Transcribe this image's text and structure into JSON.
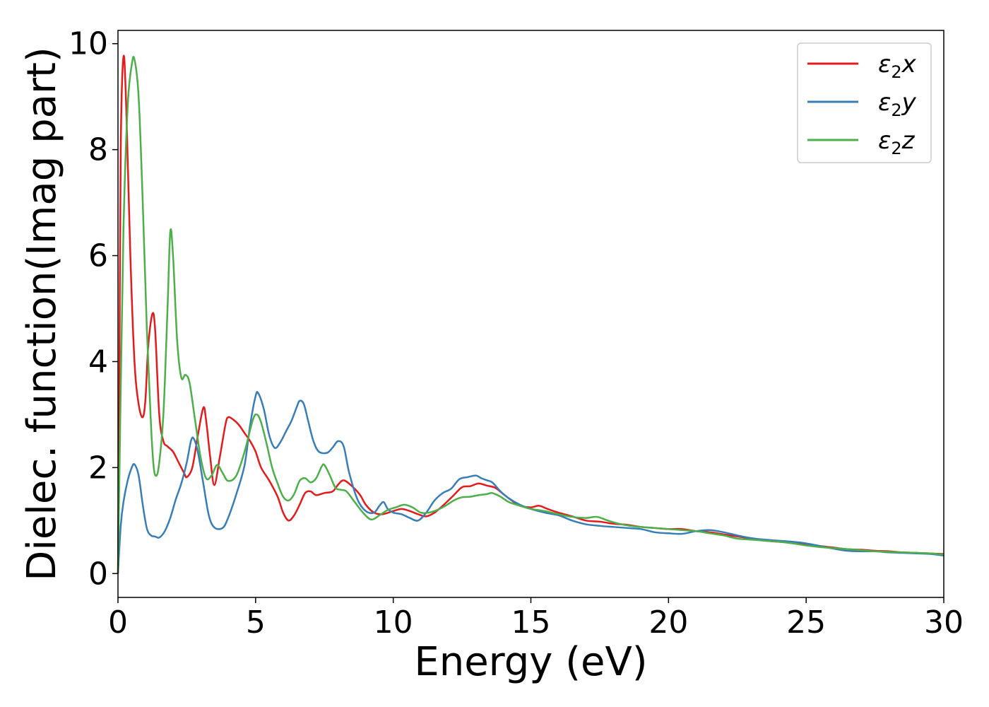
{
  "chart_data": {
    "type": "line",
    "title": "",
    "xlabel": "Energy (eV)",
    "ylabel": "Dielec. function(Imag part)",
    "xlim": [
      0,
      30
    ],
    "ylim": [
      -0.45,
      10.25
    ],
    "xticks": [
      0,
      5,
      10,
      15,
      20,
      25,
      30
    ],
    "xtick_labels": [
      "0",
      "5",
      "10",
      "15",
      "20",
      "25",
      "30"
    ],
    "yticks": [
      0,
      2,
      4,
      6,
      8,
      10
    ],
    "ytick_labels": [
      "0",
      "2",
      "4",
      "6",
      "8",
      "10"
    ],
    "grid": false,
    "legend": {
      "position": "top-right"
    },
    "series": [
      {
        "name": "ε2x",
        "label_main": "ε",
        "label_sub": "2",
        "label_tail": "x",
        "color": "#e41a1c",
        "points": [
          [
            0,
            0
          ],
          [
            0.05,
            3.5
          ],
          [
            0.1,
            8.0
          ],
          [
            0.2,
            9.75
          ],
          [
            0.3,
            8.8
          ],
          [
            0.45,
            6.0
          ],
          [
            0.6,
            4.0
          ],
          [
            0.75,
            3.2
          ],
          [
            0.9,
            2.95
          ],
          [
            1.0,
            3.3
          ],
          [
            1.1,
            4.3
          ],
          [
            1.25,
            4.9
          ],
          [
            1.35,
            4.6
          ],
          [
            1.5,
            3.0
          ],
          [
            1.65,
            2.5
          ],
          [
            1.8,
            2.4
          ],
          [
            2.0,
            2.3
          ],
          [
            2.2,
            2.1
          ],
          [
            2.4,
            1.9
          ],
          [
            2.5,
            1.82
          ],
          [
            2.7,
            2.0
          ],
          [
            2.9,
            2.6
          ],
          [
            3.1,
            3.13
          ],
          [
            3.2,
            2.9
          ],
          [
            3.35,
            2.2
          ],
          [
            3.5,
            1.67
          ],
          [
            3.7,
            2.2
          ],
          [
            3.9,
            2.8
          ],
          [
            4.0,
            2.95
          ],
          [
            4.2,
            2.9
          ],
          [
            4.4,
            2.8
          ],
          [
            4.6,
            2.65
          ],
          [
            4.8,
            2.5
          ],
          [
            5.0,
            2.3
          ],
          [
            5.2,
            2.0
          ],
          [
            5.5,
            1.75
          ],
          [
            5.8,
            1.45
          ],
          [
            6.0,
            1.15
          ],
          [
            6.2,
            1.0
          ],
          [
            6.4,
            1.1
          ],
          [
            6.6,
            1.3
          ],
          [
            6.8,
            1.52
          ],
          [
            7.0,
            1.55
          ],
          [
            7.2,
            1.48
          ],
          [
            7.5,
            1.52
          ],
          [
            7.8,
            1.55
          ],
          [
            8.0,
            1.68
          ],
          [
            8.2,
            1.76
          ],
          [
            8.5,
            1.65
          ],
          [
            8.8,
            1.48
          ],
          [
            9.0,
            1.3
          ],
          [
            9.3,
            1.15
          ],
          [
            9.6,
            1.12
          ],
          [
            10.0,
            1.18
          ],
          [
            10.3,
            1.22
          ],
          [
            10.6,
            1.18
          ],
          [
            10.9,
            1.12
          ],
          [
            11.2,
            1.08
          ],
          [
            11.5,
            1.15
          ],
          [
            11.8,
            1.28
          ],
          [
            12.2,
            1.48
          ],
          [
            12.5,
            1.63
          ],
          [
            12.8,
            1.65
          ],
          [
            13.1,
            1.7
          ],
          [
            13.4,
            1.66
          ],
          [
            13.7,
            1.62
          ],
          [
            14.0,
            1.5
          ],
          [
            14.3,
            1.38
          ],
          [
            14.6,
            1.28
          ],
          [
            15.0,
            1.25
          ],
          [
            15.3,
            1.28
          ],
          [
            15.6,
            1.22
          ],
          [
            16.0,
            1.15
          ],
          [
            16.5,
            1.08
          ],
          [
            17.0,
            1.0
          ],
          [
            17.5,
            0.98
          ],
          [
            18.0,
            0.94
          ],
          [
            18.5,
            0.92
          ],
          [
            19.0,
            0.88
          ],
          [
            19.5,
            0.86
          ],
          [
            20.0,
            0.84
          ],
          [
            20.5,
            0.84
          ],
          [
            21.0,
            0.8
          ],
          [
            21.5,
            0.78
          ],
          [
            22.0,
            0.74
          ],
          [
            22.5,
            0.7
          ],
          [
            23.0,
            0.66
          ],
          [
            23.5,
            0.62
          ],
          [
            24.0,
            0.6
          ],
          [
            24.5,
            0.58
          ],
          [
            25.0,
            0.55
          ],
          [
            25.5,
            0.52
          ],
          [
            26.0,
            0.49
          ],
          [
            26.5,
            0.46
          ],
          [
            27.0,
            0.45
          ],
          [
            27.5,
            0.43
          ],
          [
            28.0,
            0.42
          ],
          [
            28.5,
            0.4
          ],
          [
            29.0,
            0.39
          ],
          [
            29.5,
            0.38
          ],
          [
            30.0,
            0.37
          ]
        ]
      },
      {
        "name": "ε2y",
        "label_main": "ε",
        "label_sub": "2",
        "label_tail": "y",
        "color": "#377eb8",
        "points": [
          [
            0,
            0
          ],
          [
            0.1,
            0.9
          ],
          [
            0.2,
            1.35
          ],
          [
            0.35,
            1.75
          ],
          [
            0.5,
            2.0
          ],
          [
            0.6,
            2.06
          ],
          [
            0.75,
            1.85
          ],
          [
            0.9,
            1.3
          ],
          [
            1.05,
            0.85
          ],
          [
            1.2,
            0.72
          ],
          [
            1.35,
            0.7
          ],
          [
            1.5,
            0.68
          ],
          [
            1.7,
            0.8
          ],
          [
            1.9,
            1.05
          ],
          [
            2.1,
            1.4
          ],
          [
            2.3,
            1.7
          ],
          [
            2.5,
            2.1
          ],
          [
            2.65,
            2.5
          ],
          [
            2.75,
            2.55
          ],
          [
            2.9,
            2.3
          ],
          [
            3.1,
            1.7
          ],
          [
            3.3,
            1.1
          ],
          [
            3.5,
            0.87
          ],
          [
            3.8,
            0.86
          ],
          [
            4.0,
            1.05
          ],
          [
            4.3,
            1.5
          ],
          [
            4.6,
            2.05
          ],
          [
            4.8,
            2.8
          ],
          [
            5.0,
            3.35
          ],
          [
            5.1,
            3.4
          ],
          [
            5.3,
            3.1
          ],
          [
            5.5,
            2.6
          ],
          [
            5.7,
            2.37
          ],
          [
            5.9,
            2.48
          ],
          [
            6.1,
            2.68
          ],
          [
            6.3,
            2.88
          ],
          [
            6.5,
            3.15
          ],
          [
            6.6,
            3.26
          ],
          [
            6.75,
            3.2
          ],
          [
            6.9,
            2.9
          ],
          [
            7.1,
            2.5
          ],
          [
            7.3,
            2.3
          ],
          [
            7.6,
            2.28
          ],
          [
            7.8,
            2.38
          ],
          [
            8.0,
            2.5
          ],
          [
            8.2,
            2.4
          ],
          [
            8.4,
            1.9
          ],
          [
            8.7,
            1.4
          ],
          [
            9.0,
            1.18
          ],
          [
            9.3,
            1.15
          ],
          [
            9.5,
            1.28
          ],
          [
            9.65,
            1.35
          ],
          [
            9.8,
            1.22
          ],
          [
            10.0,
            1.15
          ],
          [
            10.3,
            1.12
          ],
          [
            10.6,
            1.05
          ],
          [
            10.9,
            1.0
          ],
          [
            11.2,
            1.15
          ],
          [
            11.5,
            1.38
          ],
          [
            11.8,
            1.52
          ],
          [
            12.1,
            1.6
          ],
          [
            12.4,
            1.78
          ],
          [
            12.7,
            1.82
          ],
          [
            13.0,
            1.85
          ],
          [
            13.2,
            1.8
          ],
          [
            13.4,
            1.76
          ],
          [
            13.6,
            1.72
          ],
          [
            13.9,
            1.55
          ],
          [
            14.2,
            1.42
          ],
          [
            14.6,
            1.3
          ],
          [
            15.0,
            1.22
          ],
          [
            15.5,
            1.15
          ],
          [
            16.0,
            1.1
          ],
          [
            16.5,
            1.0
          ],
          [
            17.0,
            0.93
          ],
          [
            17.5,
            0.9
          ],
          [
            18.0,
            0.88
          ],
          [
            18.5,
            0.86
          ],
          [
            19.0,
            0.84
          ],
          [
            19.5,
            0.78
          ],
          [
            20.0,
            0.76
          ],
          [
            20.5,
            0.75
          ],
          [
            21.0,
            0.8
          ],
          [
            21.5,
            0.82
          ],
          [
            22.0,
            0.78
          ],
          [
            22.5,
            0.72
          ],
          [
            23.0,
            0.67
          ],
          [
            23.5,
            0.64
          ],
          [
            24.0,
            0.62
          ],
          [
            24.5,
            0.6
          ],
          [
            25.0,
            0.57
          ],
          [
            25.5,
            0.52
          ],
          [
            26.0,
            0.47
          ],
          [
            26.5,
            0.43
          ],
          [
            27.0,
            0.42
          ],
          [
            27.5,
            0.42
          ],
          [
            28.0,
            0.4
          ],
          [
            28.5,
            0.39
          ],
          [
            29.0,
            0.38
          ],
          [
            29.5,
            0.37
          ],
          [
            30.0,
            0.34
          ]
        ]
      },
      {
        "name": "ε2z",
        "label_main": "ε",
        "label_sub": "2",
        "label_tail": "z",
        "color": "#4daf4a",
        "points": [
          [
            0,
            0
          ],
          [
            0.1,
            3.5
          ],
          [
            0.2,
            6.5
          ],
          [
            0.35,
            8.8
          ],
          [
            0.5,
            9.6
          ],
          [
            0.6,
            9.7
          ],
          [
            0.75,
            9.0
          ],
          [
            0.9,
            7.0
          ],
          [
            1.05,
            4.6
          ],
          [
            1.2,
            2.8
          ],
          [
            1.3,
            2.0
          ],
          [
            1.4,
            1.85
          ],
          [
            1.5,
            2.1
          ],
          [
            1.65,
            3.0
          ],
          [
            1.8,
            5.0
          ],
          [
            1.9,
            6.45
          ],
          [
            2.0,
            6.0
          ],
          [
            2.15,
            4.4
          ],
          [
            2.3,
            3.7
          ],
          [
            2.45,
            3.75
          ],
          [
            2.6,
            3.6
          ],
          [
            2.8,
            2.9
          ],
          [
            3.0,
            2.2
          ],
          [
            3.2,
            1.8
          ],
          [
            3.4,
            1.85
          ],
          [
            3.6,
            2.05
          ],
          [
            3.8,
            1.9
          ],
          [
            4.0,
            1.75
          ],
          [
            4.3,
            1.85
          ],
          [
            4.6,
            2.3
          ],
          [
            4.9,
            2.9
          ],
          [
            5.05,
            3.0
          ],
          [
            5.2,
            2.85
          ],
          [
            5.4,
            2.45
          ],
          [
            5.6,
            2.0
          ],
          [
            5.8,
            1.7
          ],
          [
            6.0,
            1.45
          ],
          [
            6.2,
            1.38
          ],
          [
            6.4,
            1.5
          ],
          [
            6.6,
            1.75
          ],
          [
            6.8,
            1.8
          ],
          [
            7.0,
            1.72
          ],
          [
            7.2,
            1.8
          ],
          [
            7.4,
            2.02
          ],
          [
            7.5,
            2.05
          ],
          [
            7.7,
            1.85
          ],
          [
            7.9,
            1.62
          ],
          [
            8.1,
            1.58
          ],
          [
            8.3,
            1.55
          ],
          [
            8.6,
            1.35
          ],
          [
            8.9,
            1.15
          ],
          [
            9.2,
            1.02
          ],
          [
            9.5,
            1.1
          ],
          [
            9.8,
            1.2
          ],
          [
            10.1,
            1.25
          ],
          [
            10.4,
            1.3
          ],
          [
            10.7,
            1.25
          ],
          [
            11.0,
            1.15
          ],
          [
            11.3,
            1.15
          ],
          [
            11.6,
            1.2
          ],
          [
            11.9,
            1.28
          ],
          [
            12.2,
            1.38
          ],
          [
            12.5,
            1.44
          ],
          [
            12.8,
            1.45
          ],
          [
            13.1,
            1.48
          ],
          [
            13.4,
            1.5
          ],
          [
            13.6,
            1.52
          ],
          [
            13.9,
            1.45
          ],
          [
            14.2,
            1.35
          ],
          [
            14.6,
            1.28
          ],
          [
            15.0,
            1.22
          ],
          [
            15.5,
            1.18
          ],
          [
            16.0,
            1.12
          ],
          [
            16.5,
            1.07
          ],
          [
            17.0,
            1.05
          ],
          [
            17.4,
            1.07
          ],
          [
            17.8,
            1.0
          ],
          [
            18.2,
            0.94
          ],
          [
            18.6,
            0.9
          ],
          [
            19.0,
            0.88
          ],
          [
            19.5,
            0.86
          ],
          [
            20.0,
            0.84
          ],
          [
            20.5,
            0.82
          ],
          [
            21.0,
            0.8
          ],
          [
            21.5,
            0.76
          ],
          [
            22.0,
            0.72
          ],
          [
            22.5,
            0.66
          ],
          [
            23.0,
            0.64
          ],
          [
            23.5,
            0.62
          ],
          [
            24.0,
            0.6
          ],
          [
            24.5,
            0.57
          ],
          [
            25.0,
            0.53
          ],
          [
            25.5,
            0.5
          ],
          [
            26.0,
            0.48
          ],
          [
            26.5,
            0.46
          ],
          [
            27.0,
            0.44
          ],
          [
            27.5,
            0.42
          ],
          [
            28.0,
            0.41
          ],
          [
            28.5,
            0.4
          ],
          [
            29.0,
            0.39
          ],
          [
            29.5,
            0.38
          ],
          [
            30.0,
            0.36
          ]
        ]
      }
    ]
  }
}
